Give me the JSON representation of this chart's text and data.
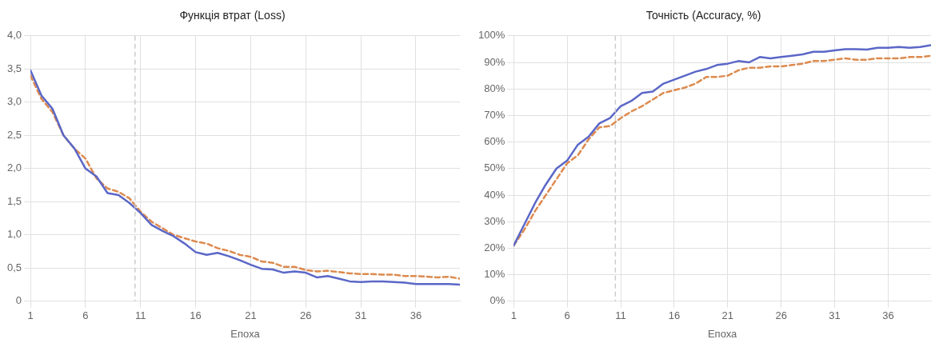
{
  "chart_data": [
    {
      "type": "line",
      "title": "Функція втрат (Loss)",
      "xlabel": "Епоха",
      "xlim": [
        1,
        40
      ],
      "xticks": [
        1,
        6,
        11,
        16,
        21,
        26,
        31,
        36
      ],
      "ylim": [
        0,
        4
      ],
      "yticks": [
        0,
        {
          "value": 0.5,
          "label": "0,5"
        },
        {
          "value": 1,
          "label": "1,0"
        },
        {
          "value": 1.5,
          "label": "1,5"
        },
        {
          "value": 2,
          "label": "2,0"
        },
        {
          "value": 2.5,
          "label": "2,5"
        },
        {
          "value": 3,
          "label": "3,0"
        },
        {
          "value": 3.5,
          "label": "3,5"
        },
        {
          "value": 4,
          "label": "4,0"
        }
      ],
      "grid": true,
      "legend": false,
      "marker": "none",
      "x": [
        1,
        2,
        3,
        4,
        5,
        6,
        7,
        8,
        9,
        10,
        11,
        12,
        13,
        14,
        15,
        16,
        17,
        18,
        19,
        20,
        21,
        22,
        23,
        24,
        25,
        26,
        27,
        28,
        29,
        30,
        31,
        32,
        33,
        34,
        35,
        36,
        37,
        38,
        39,
        40
      ],
      "series": [
        {
          "color": "#5b67c7",
          "line_style": "solid",
          "values": [
            3.48,
            3.1,
            2.9,
            2.5,
            2.3,
            2.0,
            1.88,
            1.63,
            1.6,
            1.48,
            1.33,
            1.15,
            1.06,
            0.98,
            0.87,
            0.74,
            0.7,
            0.73,
            0.68,
            0.62,
            0.55,
            0.49,
            0.48,
            0.43,
            0.45,
            0.43,
            0.36,
            0.38,
            0.34,
            0.3,
            0.29,
            0.3,
            0.3,
            0.29,
            0.28,
            0.26,
            0.26,
            0.26,
            0.26,
            0.25
          ]
        },
        {
          "color": "#dd8a4e",
          "line_style": "dashed",
          "values": [
            3.4,
            3.05,
            2.85,
            2.5,
            2.3,
            2.15,
            1.85,
            1.7,
            1.65,
            1.55,
            1.35,
            1.2,
            1.1,
            1.0,
            0.95,
            0.9,
            0.87,
            0.8,
            0.76,
            0.7,
            0.67,
            0.6,
            0.58,
            0.52,
            0.52,
            0.47,
            0.45,
            0.46,
            0.44,
            0.42,
            0.41,
            0.41,
            0.4,
            0.4,
            0.38,
            0.38,
            0.37,
            0.36,
            0.37,
            0.34
          ]
        }
      ],
      "ref_lines": [
        {
          "axis": "x",
          "value": 10.5,
          "color": "#cccccc",
          "line_style": "dashed"
        }
      ]
    },
    {
      "type": "line",
      "title": "Точність (Accuracy, %)",
      "xlabel": "Епоха",
      "xlim": [
        1,
        40
      ],
      "xticks": [
        1,
        6,
        11,
        16,
        21,
        26,
        31,
        36
      ],
      "ylim": [
        0,
        100
      ],
      "yticks": [
        {
          "value": 0,
          "label": "0%"
        },
        {
          "value": 10,
          "label": "10%"
        },
        {
          "value": 20,
          "label": "20%"
        },
        {
          "value": 30,
          "label": "30%"
        },
        {
          "value": 40,
          "label": "40%"
        },
        {
          "value": 50,
          "label": "50%"
        },
        {
          "value": 60,
          "label": "60%"
        },
        {
          "value": 70,
          "label": "70%"
        },
        {
          "value": 80,
          "label": "80%"
        },
        {
          "value": 90,
          "label": "90%"
        },
        {
          "value": 100,
          "label": "100%"
        }
      ],
      "grid": true,
      "legend": false,
      "marker": "none",
      "x": [
        1,
        2,
        3,
        4,
        5,
        6,
        7,
        8,
        9,
        10,
        11,
        12,
        13,
        14,
        15,
        16,
        17,
        18,
        19,
        20,
        21,
        22,
        23,
        24,
        25,
        26,
        27,
        28,
        29,
        30,
        31,
        32,
        33,
        34,
        35,
        36,
        37,
        38,
        39,
        40
      ],
      "series": [
        {
          "color": "#5b67c7",
          "line_style": "solid",
          "values": [
            21,
            29,
            37,
            44,
            50,
            53,
            59,
            62,
            67,
            69,
            73.5,
            75.5,
            78.5,
            79,
            82,
            83.5,
            85,
            86.5,
            87.5,
            89,
            89.5,
            90.5,
            90,
            92,
            91.5,
            92,
            92.5,
            93,
            94,
            94,
            94.5,
            95,
            95,
            94.8,
            95.5,
            95.5,
            95.8,
            95.5,
            95.8,
            96.5
          ]
        },
        {
          "color": "#dd8a4e",
          "line_style": "dashed",
          "values": [
            21,
            27,
            34,
            40,
            46,
            52,
            55,
            61,
            65.5,
            66,
            69,
            71.5,
            73.5,
            76,
            78.5,
            79.5,
            80.5,
            82,
            84.5,
            84.5,
            85,
            87,
            88,
            88,
            88.5,
            88.5,
            89,
            89.5,
            90.5,
            90.5,
            91,
            91.5,
            91,
            91,
            91.5,
            91.5,
            91.5,
            92,
            92,
            92.5
          ]
        }
      ],
      "ref_lines": [
        {
          "axis": "x",
          "value": 10.5,
          "color": "#cccccc",
          "line_style": "dashed"
        }
      ]
    }
  ]
}
